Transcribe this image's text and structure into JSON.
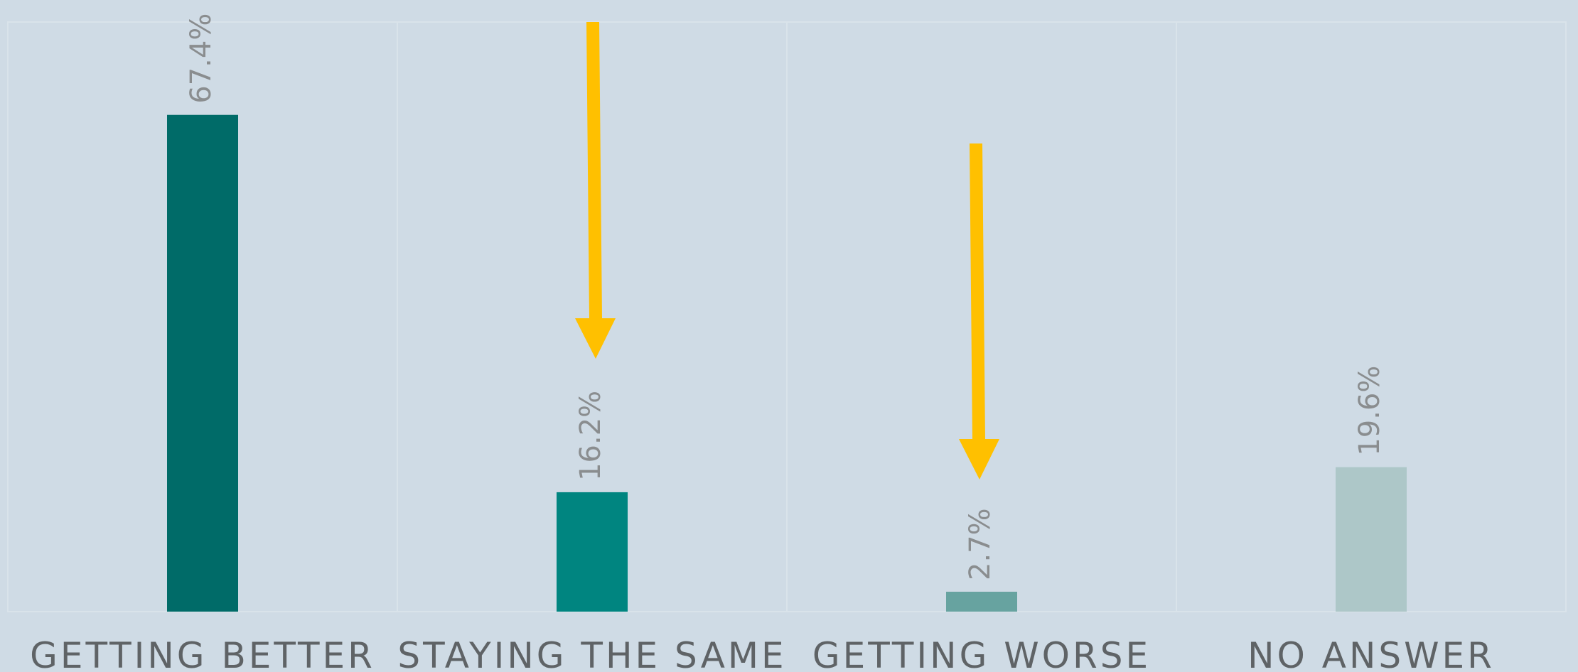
{
  "chart_data": {
    "type": "bar",
    "categories": [
      "GETTING BETTER",
      "STAYING THE SAME",
      "GETTING WORSE",
      "NO ANSWER"
    ],
    "values": [
      67.4,
      16.2,
      2.7,
      19.6
    ],
    "value_labels": [
      "67.4%",
      "16.2%",
      "2.7%",
      "19.6%"
    ],
    "colors": [
      "#006b68",
      "#008580",
      "#67a3a0",
      "#adc7c8"
    ],
    "ylim": [
      0,
      80
    ]
  }
}
